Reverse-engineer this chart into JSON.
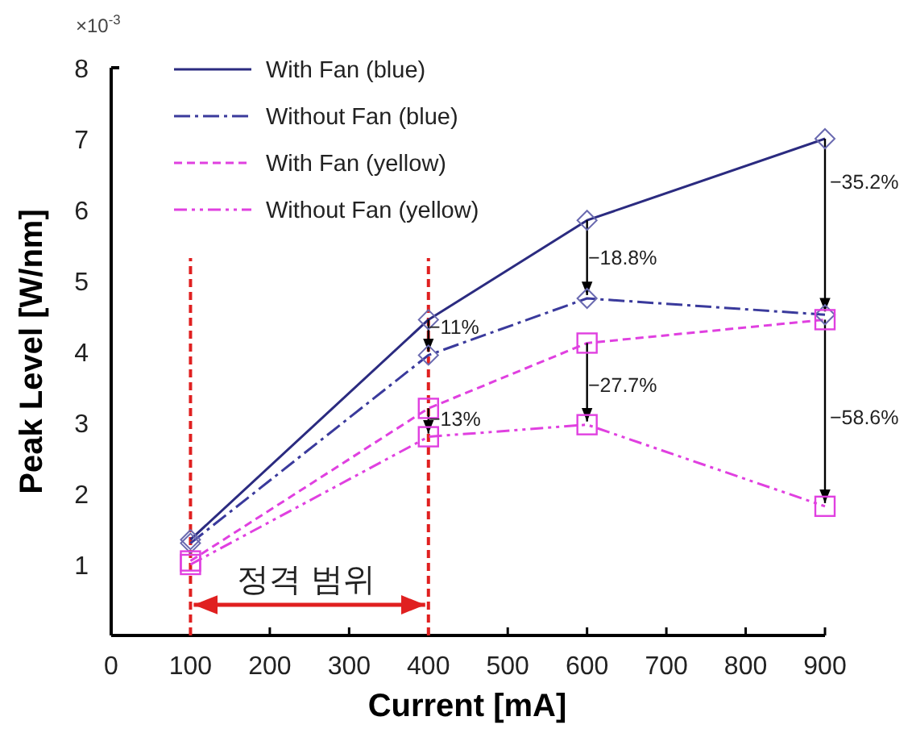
{
  "chart_data": {
    "type": "line",
    "xlabel": "Current [mA]",
    "ylabel": "Peak Level [W/nm]",
    "x": [
      100,
      400,
      600,
      900
    ],
    "series": [
      {
        "name": "With Fan (blue)",
        "color": "#2b2b80",
        "values": [
          1.35,
          4.45,
          5.85,
          7.0
        ],
        "marker": "diamond",
        "line_style": "solid"
      },
      {
        "name": "Without Fan (blue)",
        "color": "#3a3a9c",
        "values": [
          1.3,
          3.95,
          4.75,
          4.52
        ],
        "marker": "diamond",
        "line_style": "dashdot"
      },
      {
        "name": "With Fan (yellow)",
        "color": "#e040e0",
        "values": [
          1.05,
          3.2,
          4.12,
          4.45
        ],
        "marker": "square",
        "line_style": "dashed"
      },
      {
        "name": "Without Fan (yellow)",
        "color": "#e040e0",
        "values": [
          1.0,
          2.8,
          2.97,
          1.82
        ],
        "marker": "square",
        "line_style": "dashdotdot"
      }
    ],
    "xlim": [
      0,
      900
    ],
    "xticks": [
      0,
      100,
      200,
      300,
      400,
      500,
      600,
      700,
      800,
      900
    ],
    "ylim": [
      0,
      8
    ],
    "yticks": [
      1,
      2,
      3,
      4,
      5,
      6,
      7,
      8
    ],
    "grid": false,
    "legend": "top left",
    "ref_lines": [
      {
        "axis": "x",
        "value": 100,
        "color": "#e02020",
        "line_style": "dashed"
      },
      {
        "axis": "x",
        "value": 400,
        "color": "#e02020",
        "line_style": "dashed"
      }
    ],
    "annotations": [
      "×10$^{-3}$",
      "정격 범위",
      "−11%",
      "−18.8%",
      "−35.2%",
      "−13%",
      "−27.7%",
      "−58.6%"
    ]
  }
}
